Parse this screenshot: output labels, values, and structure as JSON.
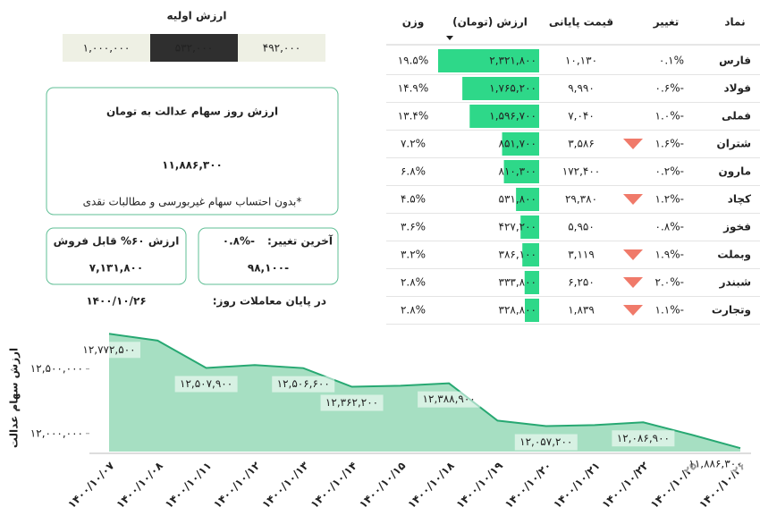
{
  "initial_value": {
    "title": "ارزش اولیه",
    "options": [
      "۱,۰۰۰,۰۰۰",
      "۵۳۲,۰۰۰",
      "۴۹۲,۰۰۰"
    ],
    "selected": 1
  },
  "main_card": {
    "title": "ارزش روز سهام عدالت به تومان",
    "value": "۱۱,۸۸۶,۳۰۰",
    "note": "*بدون احتساب سهام غیربورسی و مطالبات نقدی"
  },
  "change_card": {
    "label": "آخرین تغییر:",
    "percent": "-۰.۸%",
    "amount": "-۹۸,۱۰۰"
  },
  "sellable_card": {
    "label": "ارزش ۶۰% قابل فروش",
    "value": "۷,۱۳۱,۸۰۰"
  },
  "date_info": {
    "label": "در پایان معاملات روز:",
    "date": "۱۴۰۰/۱۰/۲۶"
  },
  "table": {
    "headers": [
      "نماد",
      "تغییر",
      "قیمت پایانی",
      "ارزش (تومان)",
      "وزن"
    ],
    "rows": [
      {
        "symbol": "فارس",
        "change": {
          "value": 0.1,
          "label": "۰.۱%"
        },
        "price": "۱۰,۱۳۰",
        "value": {
          "value": 2321800,
          "label": "۲,۳۲۱,۸۰۰"
        },
        "weight": "۱۹.۵%",
        "down_icon": false
      },
      {
        "symbol": "فولاد",
        "change": {
          "value": -0.6,
          "label": "-۰.۶%"
        },
        "price": "۹,۹۹۰",
        "value": {
          "value": 1765200,
          "label": "۱,۷۶۵,۲۰۰"
        },
        "weight": "۱۴.۹%",
        "down_icon": false
      },
      {
        "symbol": "فملی",
        "change": {
          "value": -1.0,
          "label": "-۱.۰%"
        },
        "price": "۷,۰۴۰",
        "value": {
          "value": 1596700,
          "label": "۱,۵۹۶,۷۰۰"
        },
        "weight": "۱۳.۴%",
        "down_icon": false
      },
      {
        "symbol": "شتران",
        "change": {
          "value": -1.6,
          "label": "-۱.۶%"
        },
        "price": "۳,۵۸۶",
        "value": {
          "value": 851700,
          "label": "۸۵۱,۷۰۰"
        },
        "weight": "۷.۲%",
        "down_icon": true
      },
      {
        "symbol": "مارون",
        "change": {
          "value": -0.2,
          "label": "-۰.۲%"
        },
        "price": "۱۷۲,۴۰۰",
        "value": {
          "value": 810300,
          "label": "۸۱۰,۳۰۰"
        },
        "weight": "۶.۸%",
        "down_icon": false
      },
      {
        "symbol": "کچاد",
        "change": {
          "value": -1.2,
          "label": "-۱.۲%"
        },
        "price": "۲۹,۳۸۰",
        "value": {
          "value": 531800,
          "label": "۵۳۱,۸۰۰"
        },
        "weight": "۴.۵%",
        "down_icon": true
      },
      {
        "symbol": "فخوز",
        "change": {
          "value": -0.8,
          "label": "-۰.۸%"
        },
        "price": "۵,۹۵۰",
        "value": {
          "value": 427200,
          "label": "۴۲۷,۲۰۰"
        },
        "weight": "۳.۶%",
        "down_icon": false
      },
      {
        "symbol": "وبملت",
        "change": {
          "value": -1.9,
          "label": "-۱.۹%"
        },
        "price": "۳,۱۱۹",
        "value": {
          "value": 386100,
          "label": "۳۸۶,۱۰۰"
        },
        "weight": "۳.۲%",
        "down_icon": true
      },
      {
        "symbol": "شبندر",
        "change": {
          "value": -2.0,
          "label": "-۲.۰%"
        },
        "price": "۶,۲۵۰",
        "value": {
          "value": 333800,
          "label": "۳۳۳,۸۰۰"
        },
        "weight": "۲.۸%",
        "down_icon": true
      },
      {
        "symbol": "وتجارت",
        "change": {
          "value": -1.1,
          "label": "-۱.۱%"
        },
        "price": "۱,۸۳۹",
        "value": {
          "value": 328800,
          "label": "۳۲۸,۸۰۰"
        },
        "weight": "۲.۸%",
        "down_icon": true
      }
    ]
  },
  "chart_data": {
    "type": "area",
    "y_label": "ارزش سهام عدالت",
    "color": "#27a872",
    "fill": "#a6dfc2",
    "categories": [
      "۱۴۰۰/۱۰/۰۷",
      "۱۴۰۰/۱۰/۰۸",
      "۱۴۰۰/۱۰/۱۱",
      "۱۴۰۰/۱۰/۱۲",
      "۱۴۰۰/۱۰/۱۳",
      "۱۴۰۰/۱۰/۱۴",
      "۱۴۰۰/۱۰/۱۵",
      "۱۴۰۰/۱۰/۱۸",
      "۱۴۰۰/۱۰/۱۹",
      "۱۴۰۰/۱۰/۲۰",
      "۱۴۰۰/۱۰/۲۱",
      "۱۴۰۰/۱۰/۲۲",
      "۱۴۰۰/۱۰/۲۵",
      "۱۴۰۰/۱۰/۲۶"
    ],
    "values": [
      12772500,
      12720000,
      12507900,
      12530000,
      12506600,
      12362200,
      12370000,
      12388900,
      12100000,
      12057200,
      12065000,
      12086900,
      11990000,
      11886300
    ],
    "value_labels": [
      "۱۲,۷۷۲,۵۰۰",
      null,
      "۱۲,۵۰۷,۹۰۰",
      null,
      "۱۲,۵۰۶,۶۰۰",
      "۱۲,۳۶۲,۲۰۰",
      null,
      "۱۲,۳۸۸,۹۰۰",
      null,
      "۱۲,۰۵۷,۲۰۰",
      null,
      "۱۲,۰۸۶,۹۰۰",
      null,
      "۱۱,۸۸۶,۳۰۰"
    ],
    "ylim": [
      11860000,
      12830000
    ],
    "yticks": [
      {
        "value": 12000000,
        "label": "۱۲,۰۰۰,۰۰۰"
      },
      {
        "value": 12500000,
        "label": "۱۲,۵۰۰,۰۰۰"
      }
    ]
  }
}
